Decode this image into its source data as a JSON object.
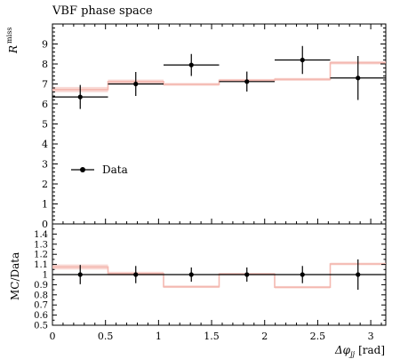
{
  "chart_data": {
    "type": "line",
    "title": "VBF phase space",
    "xlabel": "Δφjj [rad]",
    "xlabel_parts": {
      "main": "Δφ",
      "sub": "jj",
      "unit": "[rad]"
    },
    "ylabel_main": {
      "symbol": "R",
      "superscript": "miss"
    },
    "ylabel_ratio": "MC/Data",
    "xlim": [
      0,
      3.1416
    ],
    "main_ylim": [
      0,
      10
    ],
    "ratio_ylim": [
      0.5,
      1.5
    ],
    "x_ticks": [
      0,
      0.5,
      1,
      1.5,
      2,
      2.5,
      3
    ],
    "x_tick_labels": [
      "0",
      "0.5",
      "1",
      "1.5",
      "2",
      "2.5",
      "3"
    ],
    "main_y_ticks": [
      0,
      1,
      2,
      3,
      4,
      5,
      6,
      7,
      8,
      9
    ],
    "ratio_y_ticks": [
      0.5,
      0.6,
      0.7,
      0.8,
      0.9,
      1,
      1.1,
      1.2,
      1.3,
      1.4
    ],
    "ratio_y_tick_labels": [
      "0.5",
      "0.6",
      "0.7",
      "0.8",
      "0.9",
      "1",
      "1.1",
      "1.2",
      "1.3",
      "1.4"
    ],
    "bin_edges": [
      0,
      0.5236,
      1.0472,
      1.5708,
      2.0944,
      2.618,
      3.1416
    ],
    "series": [
      {
        "name": "Data",
        "style": "points",
        "x": [
          0.2618,
          0.7854,
          1.309,
          1.8326,
          2.3562,
          2.8798
        ],
        "y": [
          6.35,
          7.0,
          7.95,
          7.12,
          8.2,
          7.3
        ],
        "yerr": [
          0.6,
          0.6,
          0.55,
          0.5,
          0.7,
          1.1
        ],
        "color": "#000000"
      },
      {
        "name": "",
        "style": "step",
        "y": [
          6.72,
          7.12,
          6.98,
          7.18,
          7.23,
          8.06
        ],
        "band": [
          0.13,
          0.1,
          0.07,
          0.07,
          0.07,
          0.08
        ],
        "color": "#f4b8b0"
      }
    ],
    "ratio": {
      "mc": [
        1.075,
        1.01,
        0.88,
        1.005,
        0.875,
        1.105
      ],
      "mc_band": [
        0.025,
        0.018,
        0.012,
        0.012,
        0.012,
        0.012
      ],
      "data_y": [
        1.0,
        1.0,
        1.0,
        1.0,
        1.0,
        1.0
      ],
      "data_err": [
        0.095,
        0.085,
        0.07,
        0.07,
        0.085,
        0.15
      ]
    },
    "legend": {
      "entries": [
        "Data"
      ],
      "position": "middle-left"
    },
    "grid": false
  }
}
